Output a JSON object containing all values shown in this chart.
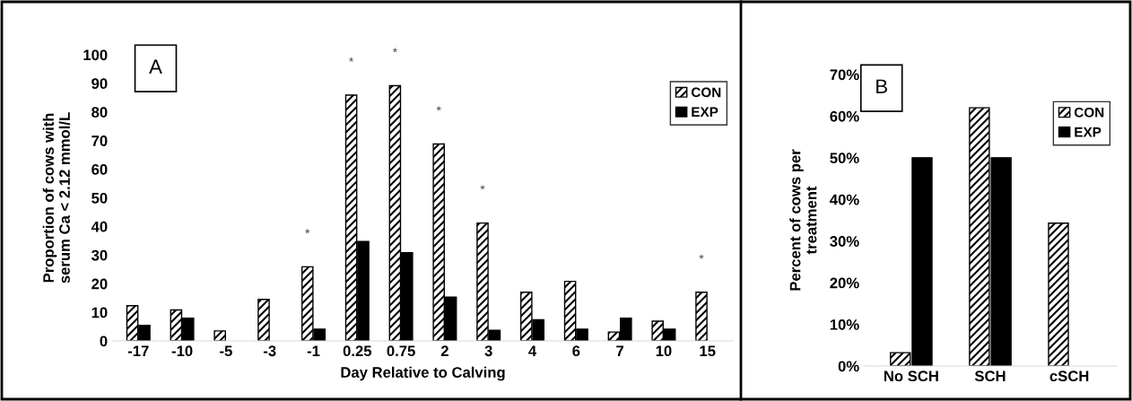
{
  "chart_data": [
    {
      "type": "bar",
      "xlabel": "Day Relative to Calving",
      "ylabel": "Proportion of cows with\nserum Ca < 2.12 mmol/L",
      "categories": [
        "-17",
        "-10",
        "-5",
        "-3",
        "-1",
        "0.25",
        "0.75",
        "2",
        "3",
        "4",
        "6",
        "7",
        "10",
        "15"
      ],
      "series": [
        {
          "name": "CON",
          "color": "#000000",
          "values": [
            12.3,
            10.8,
            3.5,
            14.5,
            25.9,
            85.9,
            89.2,
            68.8,
            41.2,
            17.0,
            20.8,
            3.1,
            6.9,
            17.0
          ]
        },
        {
          "name": "EXP",
          "color": "#000000",
          "values": [
            5.4,
            7.9,
            0,
            0,
            4.1,
            34.7,
            30.8,
            15.3,
            3.7,
            7.4,
            4.1,
            7.9,
            4.1,
            0
          ]
        }
      ],
      "ylim": [
        0,
        100
      ],
      "yticks": [
        0,
        10,
        20,
        30,
        40,
        50,
        60,
        70,
        80,
        90,
        100
      ],
      "legend": "top right",
      "grid": false,
      "annotations": [
        "A",
        {
          "text": "*",
          "x": "-1",
          "y": 25.9
        },
        {
          "text": "*",
          "x": "0.25",
          "y": 85.9
        },
        {
          "text": "*",
          "x": "0.75",
          "y": 89.2
        },
        {
          "text": "*",
          "x": "2",
          "y": 68.8
        },
        {
          "text": "*",
          "x": "3",
          "y": 41.2
        },
        {
          "text": "*",
          "x": "15",
          "y": 17.0
        }
      ]
    },
    {
      "type": "bar",
      "ylabel": "Percent of cows per\ntreatment",
      "categories": [
        "No SCH",
        "SCH",
        "cSCH"
      ],
      "series": [
        {
          "name": "CON",
          "color": "#000000",
          "values": [
            3.2,
            62,
            34.3
          ]
        },
        {
          "name": "EXP",
          "color": "#000000",
          "values": [
            50,
            50,
            0
          ]
        }
      ],
      "ylim": [
        0,
        70
      ],
      "yticks": [
        {
          "value": 0,
          "label": "0%"
        },
        {
          "value": 10,
          "label": "10%"
        },
        {
          "value": 20,
          "label": "20%"
        },
        {
          "value": 30,
          "label": "30%"
        },
        {
          "value": 40,
          "label": "40%"
        },
        {
          "value": 50,
          "label": "50%"
        },
        {
          "value": 60,
          "label": "60%"
        },
        {
          "value": 70,
          "label": "70%"
        }
      ],
      "legend": "top right",
      "grid": false,
      "annotations": [
        "B"
      ]
    }
  ]
}
